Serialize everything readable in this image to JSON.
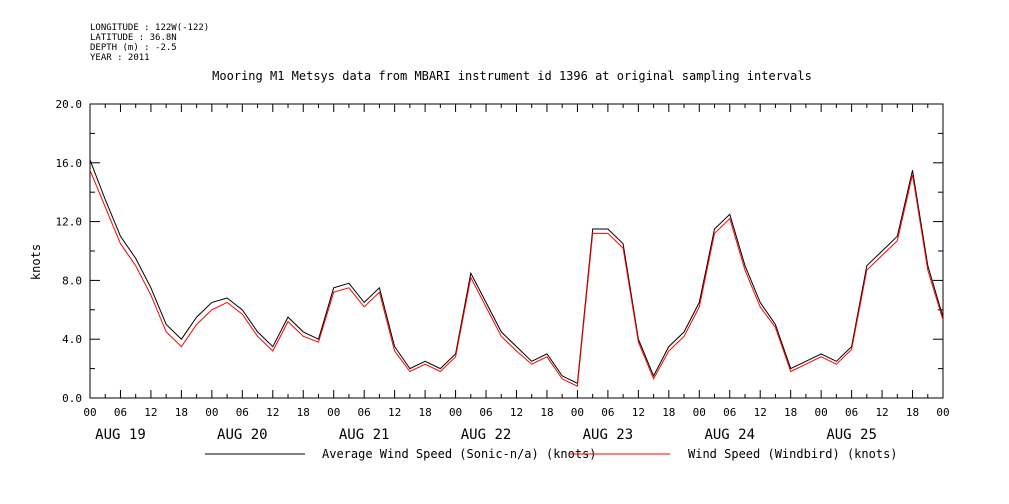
{
  "meta": {
    "longitude": "LONGITUDE : 122W(-122)",
    "latitude": "LATITUDE : 36.8N",
    "depth": "DEPTH (m) : -2.5",
    "year": "YEAR : 2011"
  },
  "colors": {
    "series1": "#000000",
    "series2": "#ff0000"
  },
  "chart_data": {
    "type": "line",
    "title": "Mooring M1 Metsys data from MBARI instrument id 1396 at original sampling intervals",
    "ylabel": "knots",
    "xlabel": "",
    "ylim": [
      0,
      20
    ],
    "y_ticks": [
      "0.0",
      "4.0",
      "8.0",
      "12.0",
      "16.0",
      "20.0"
    ],
    "x_unit": "hours since AUG 19 00:00",
    "xlim": [
      0,
      168
    ],
    "x_ticks": [
      "00",
      "06",
      "12",
      "18",
      "00",
      "06",
      "12",
      "18",
      "00",
      "06",
      "12",
      "18",
      "00",
      "06",
      "12",
      "18",
      "00",
      "06",
      "12",
      "18",
      "00",
      "06",
      "12",
      "18",
      "00",
      "06",
      "12",
      "18",
      "00"
    ],
    "day_labels": [
      "AUG 19",
      "AUG 20",
      "AUG 21",
      "AUG 22",
      "AUG 23",
      "AUG 24",
      "AUG 25"
    ],
    "grid": false,
    "legend_position": "bottom",
    "x": [
      0,
      3,
      6,
      9,
      12,
      15,
      18,
      21,
      24,
      27,
      30,
      33,
      36,
      39,
      42,
      45,
      48,
      51,
      54,
      57,
      60,
      63,
      66,
      69,
      72,
      75,
      78,
      81,
      84,
      87,
      90,
      93,
      96,
      99,
      102,
      105,
      108,
      111,
      114,
      117,
      120,
      123,
      126,
      129,
      132,
      135,
      138,
      141,
      144,
      147,
      150,
      153,
      156,
      159,
      162,
      165,
      168
    ],
    "series": [
      {
        "name": "Average Wind Speed (Sonic-n/a) (knots)",
        "values": [
          16.2,
          13.5,
          11.0,
          9.5,
          7.5,
          5.0,
          4.0,
          5.5,
          6.5,
          6.8,
          6.0,
          4.5,
          3.5,
          5.5,
          4.5,
          4.0,
          7.5,
          7.8,
          6.5,
          7.5,
          3.5,
          2.0,
          2.5,
          2.0,
          3.0,
          8.5,
          6.5,
          4.5,
          3.5,
          2.5,
          3.0,
          1.5,
          1.0,
          11.5,
          11.5,
          10.5,
          4.0,
          1.5,
          3.5,
          4.5,
          6.5,
          11.5,
          12.5,
          9.0,
          6.5,
          5.0,
          2.0,
          2.5,
          3.0,
          2.5,
          3.5,
          9.0,
          10.0,
          11.0,
          15.5,
          9.0,
          5.5
        ]
      },
      {
        "name": "Wind Speed (Windbird) (knots)",
        "values": [
          15.5,
          13.0,
          10.5,
          9.0,
          7.0,
          4.5,
          3.5,
          5.0,
          6.0,
          6.5,
          5.7,
          4.2,
          3.2,
          5.2,
          4.2,
          3.8,
          7.2,
          7.5,
          6.2,
          7.2,
          3.2,
          1.8,
          2.3,
          1.8,
          2.8,
          8.2,
          6.2,
          4.2,
          3.2,
          2.3,
          2.8,
          1.3,
          0.8,
          11.2,
          11.2,
          10.2,
          3.8,
          1.3,
          3.2,
          4.2,
          6.2,
          11.2,
          12.2,
          8.7,
          6.2,
          4.8,
          1.8,
          2.3,
          2.8,
          2.3,
          3.3,
          8.7,
          9.7,
          10.7,
          15.2,
          8.7,
          5.3
        ]
      }
    ]
  },
  "legend": {
    "entry1": "Average Wind Speed (Sonic-n/a) (knots)",
    "entry2": "Wind Speed (Windbird) (knots)"
  }
}
